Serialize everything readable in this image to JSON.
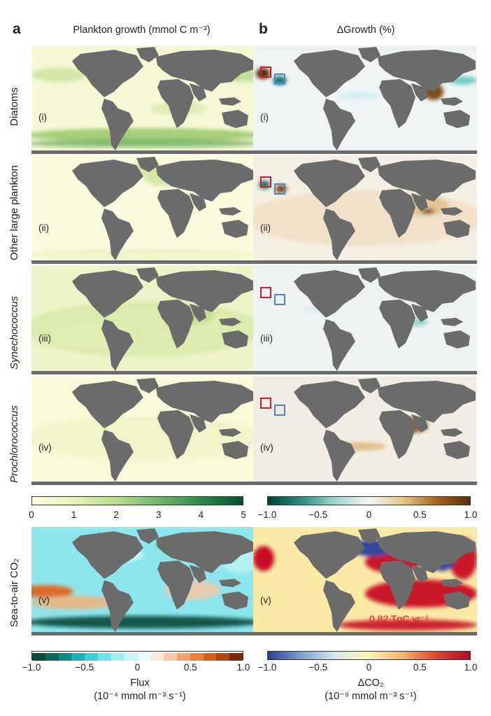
{
  "panels": {
    "a": "a",
    "b": "b",
    "a_title": "Plankton growth (mmol C m⁻³)",
    "b_title": "ΔGrowth (%)"
  },
  "rows": [
    {
      "label": "Diatoms",
      "index": "(i)",
      "italic": false
    },
    {
      "label": "Other large plankton",
      "index": "(ii)",
      "italic": false
    },
    {
      "label": "Synechococcus",
      "index": "(iii)",
      "italic": true
    },
    {
      "label": "Prochlorococcus",
      "index": "(iv)",
      "italic": true
    },
    {
      "label": "Sea-to-air CO₂",
      "index": "(v)",
      "italic": false
    }
  ],
  "colorbars": {
    "growth": {
      "ticks": [
        "0",
        "1",
        "2",
        "3",
        "4",
        "5"
      ],
      "range": [
        0,
        5
      ],
      "color_low": "#fdfde0",
      "color_high": "#05502f"
    },
    "delta_growth": {
      "ticks": [
        "−1.0",
        "−0.5",
        "0",
        "0.5",
        "1.0"
      ],
      "range": [
        -1.0,
        1.0
      ],
      "color_low": "#033e36",
      "color_high": "#54300a"
    },
    "flux": {
      "ticks": [
        "−1.0",
        "−0.5",
        "0",
        "0.5",
        "1.0"
      ],
      "range": [
        -1.0,
        1.0
      ],
      "label_line1": "Flux",
      "label_line2": "(10⁻⁴ mmol m⁻³ s⁻¹)"
    },
    "delta_co2": {
      "ticks": [
        "−1.0",
        "−0.5",
        "0",
        "0.5",
        "1.0"
      ],
      "range": [
        -1.0,
        1.0
      ],
      "label_line1": "ΔCO₂",
      "label_line2": "(10⁻⁹ mmol m⁻³ s⁻¹)"
    }
  },
  "annotation": "0.82 TgC yr⁻¹",
  "colors": {
    "land": "#6b6b6b",
    "box_red": "#c8202a",
    "box_blue": "#4e86c4",
    "annotation": "#d11f25"
  }
}
